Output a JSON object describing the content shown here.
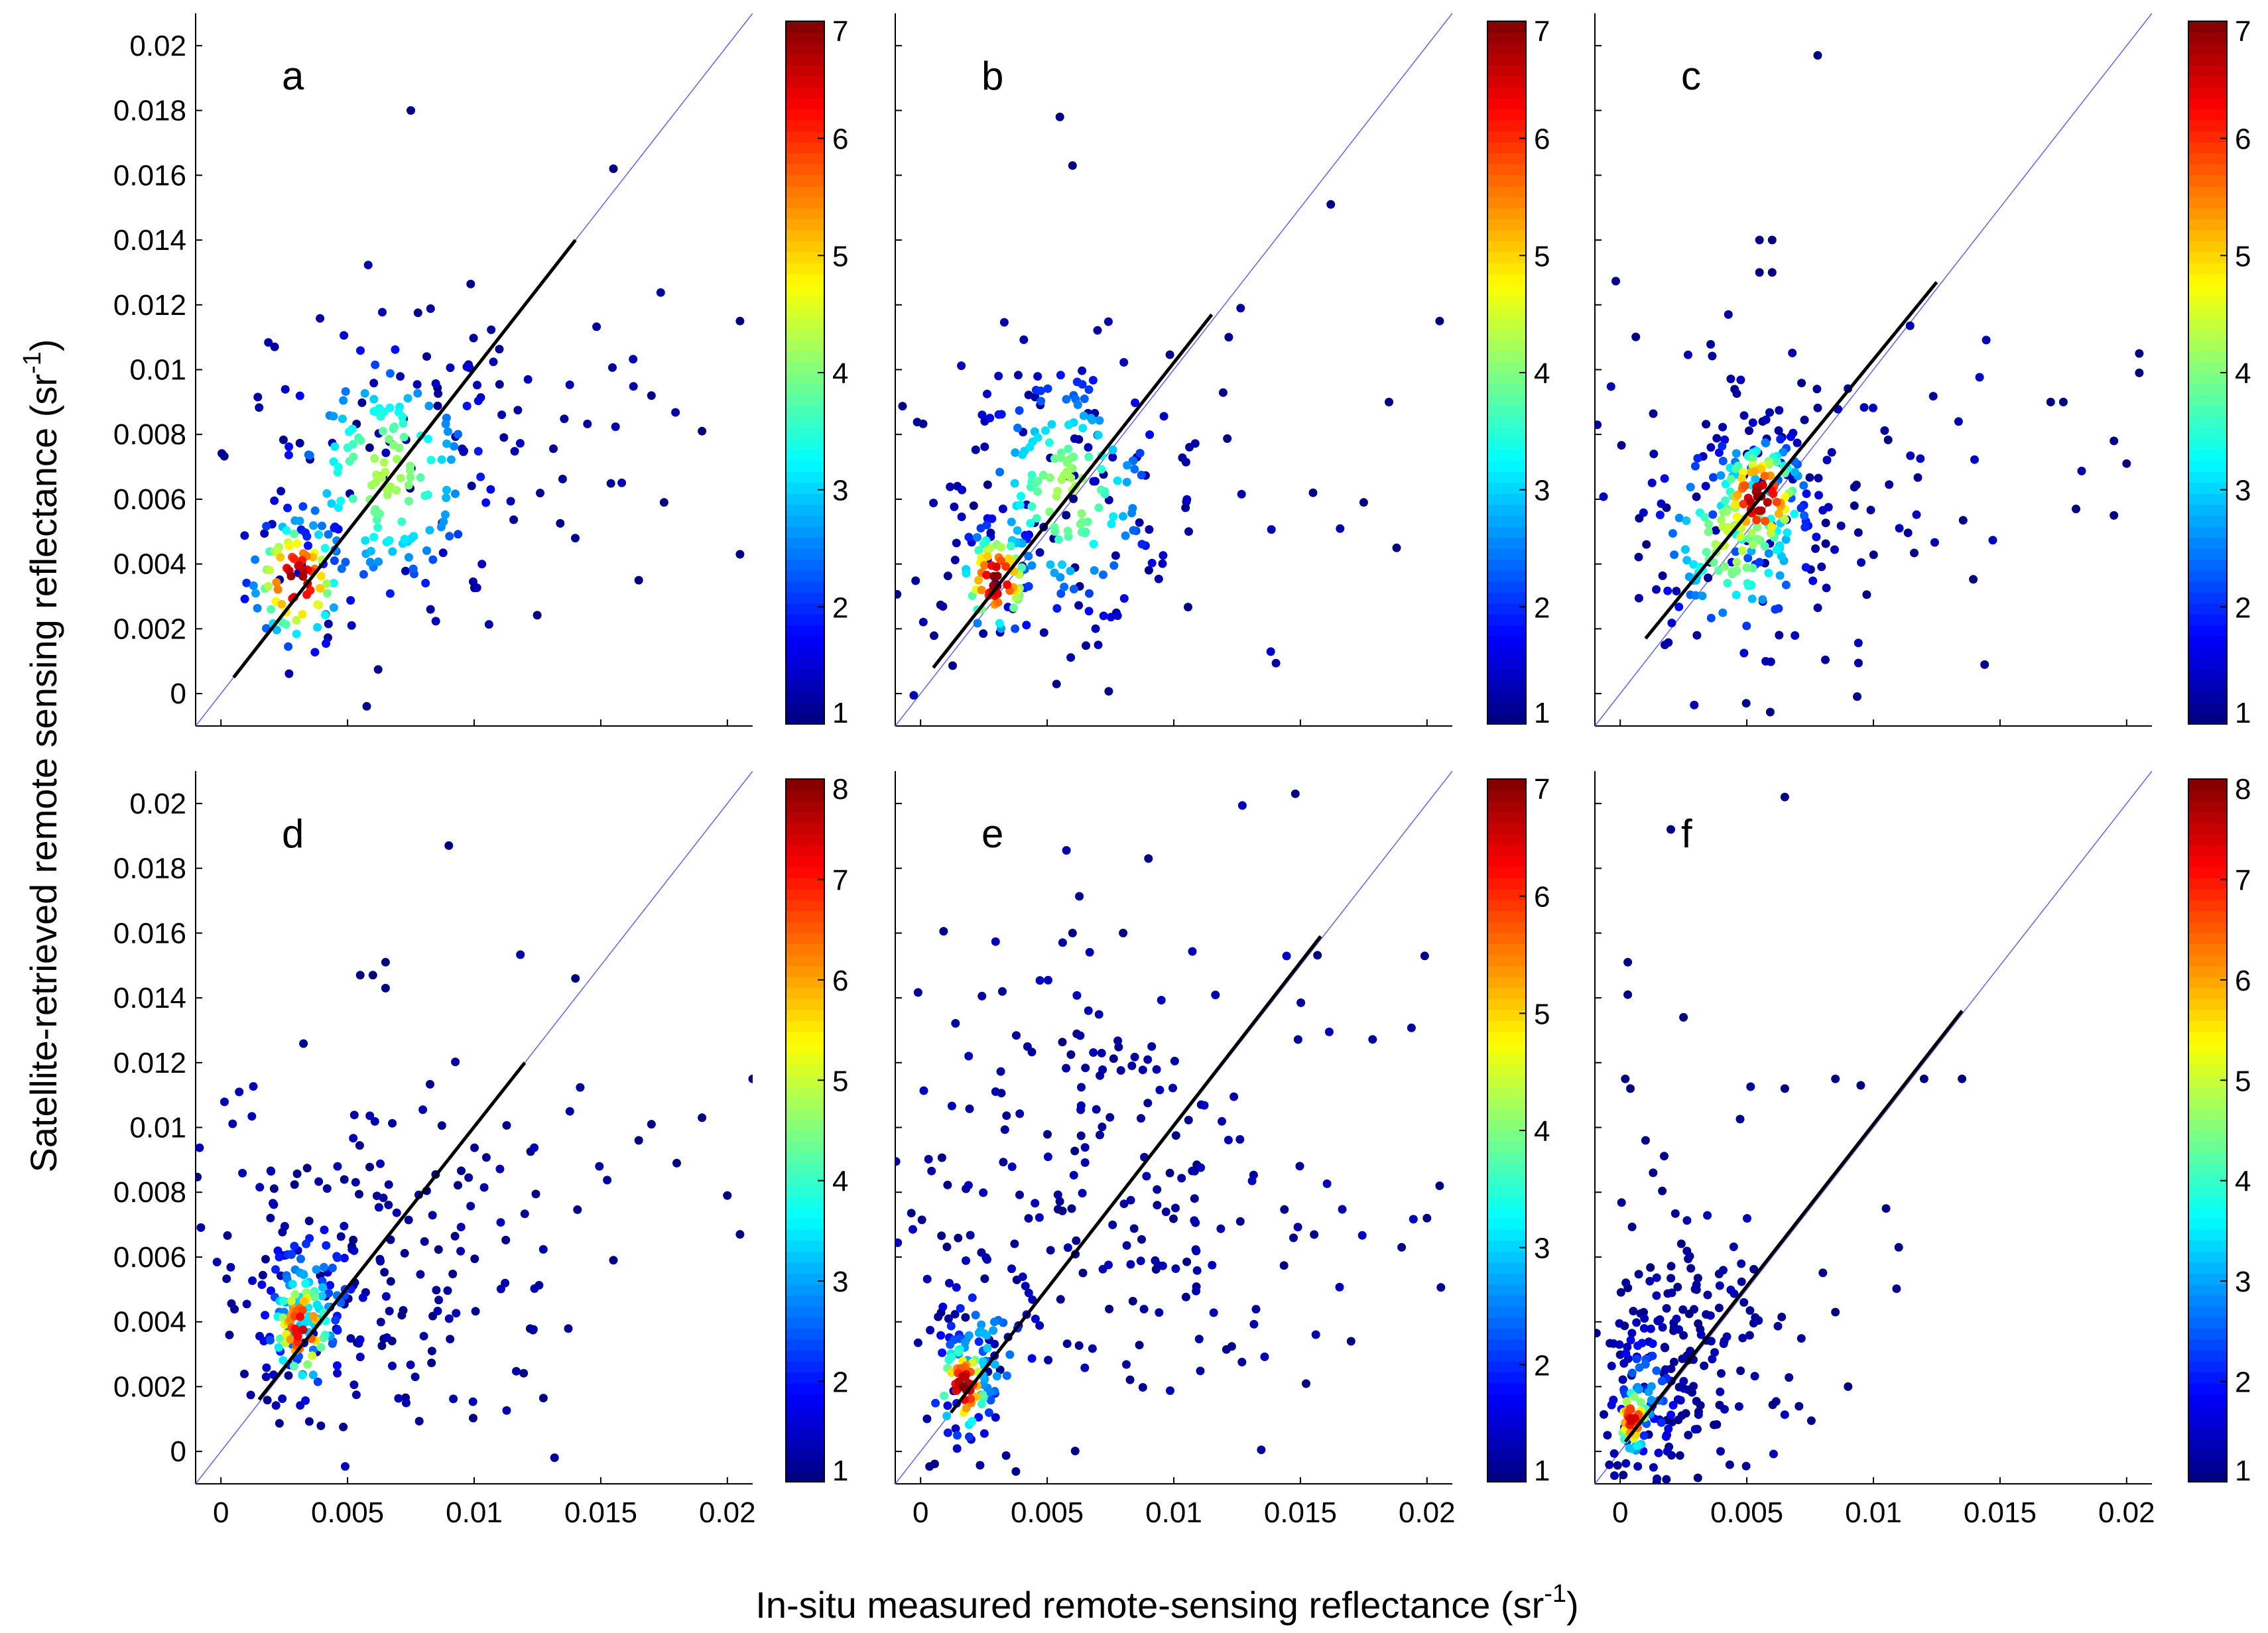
{
  "figure": {
    "xlabel": "In-situ measured remote-sensing reflectance (sr",
    "xlabel_sup": "-1",
    "xlabel_end": ")",
    "ylabel": "Satellite-retrieved remote sensing reflectance (sr",
    "ylabel_sup": "-1",
    "ylabel_end": ")"
  },
  "chart_data": [
    {
      "type": "scatter",
      "label": "a",
      "xlim": [
        -0.001,
        0.021
      ],
      "ylim": [
        -0.001,
        0.021
      ],
      "xticks": [
        0,
        0.005,
        0.01,
        0.015,
        0.02
      ],
      "xticklabels": [
        "0",
        "0.005",
        "0.01",
        "0.015",
        "0.02"
      ],
      "yticks": [
        0,
        0.002,
        0.004,
        0.006,
        0.008,
        0.01,
        0.012,
        0.014,
        0.016,
        0.018,
        0.02
      ],
      "yticklabels": [
        "0",
        "0.002",
        "0.004",
        "0.006",
        "0.008",
        "0.01",
        "0.012",
        "0.014",
        "0.016",
        "0.018",
        "0.02"
      ],
      "show_xticklabels": false,
      "show_yticklabels": true,
      "colorbar": {
        "min": 1,
        "max": 7,
        "ticks": [
          "1",
          "2",
          "3",
          "4",
          "5",
          "6",
          "7"
        ]
      },
      "one_to_one_line": true,
      "fit_line": [
        [
          0.0005,
          0.0005
        ],
        [
          0.014,
          0.014
        ]
      ],
      "clusters": [
        {
          "n": 90,
          "cx": 0.003,
          "cy": 0.0035,
          "sx": 0.001,
          "sy": 0.0011,
          "density": 6.5
        },
        {
          "n": 170,
          "cx": 0.0065,
          "cy": 0.0068,
          "sx": 0.0022,
          "sy": 0.0022,
          "density": 3.8
        },
        {
          "n": 80,
          "cx": 0.0075,
          "cy": 0.0075,
          "sx": 0.0045,
          "sy": 0.003,
          "density": 1
        }
      ],
      "outliers": [
        [
          0.0075,
          0.018
        ],
        [
          0.0155,
          0.0162
        ],
        [
          0.0205,
          0.0115
        ],
        [
          0.0215,
          0.0055
        ],
        [
          0.019,
          0.0081
        ],
        [
          0.0205,
          0.0043
        ],
        [
          0.017,
          0.0092
        ],
        [
          0.0165,
          0.0035
        ],
        [
          0.0175,
          0.0059
        ]
      ]
    },
    {
      "type": "scatter",
      "label": "b",
      "xlim": [
        -0.001,
        0.021
      ],
      "ylim": [
        -0.001,
        0.021
      ],
      "xticks": [
        0,
        0.005,
        0.01,
        0.015,
        0.02
      ],
      "xticklabels": [
        "0",
        "0.005",
        "0.01",
        "0.015",
        "0.02"
      ],
      "yticks": [
        0,
        0.002,
        0.004,
        0.006,
        0.008,
        0.01,
        0.012,
        0.014,
        0.016,
        0.018,
        0.02
      ],
      "yticklabels": [
        "0",
        "0.002",
        "0.004",
        "0.006",
        "0.008",
        "0.01",
        "0.012",
        "0.014",
        "0.016",
        "0.018",
        "0.02"
      ],
      "show_xticklabels": false,
      "show_yticklabels": false,
      "colorbar": {
        "min": 1,
        "max": 7,
        "ticks": [
          "1",
          "2",
          "3",
          "4",
          "5",
          "6",
          "7"
        ]
      },
      "one_to_one_line": true,
      "fit_line": [
        [
          0.0005,
          0.0008
        ],
        [
          0.0115,
          0.0117
        ]
      ],
      "clusters": [
        {
          "n": 80,
          "cx": 0.003,
          "cy": 0.0035,
          "sx": 0.0008,
          "sy": 0.0009,
          "density": 6.5
        },
        {
          "n": 170,
          "cx": 0.0058,
          "cy": 0.0062,
          "sx": 0.002,
          "sy": 0.0021,
          "density": 3.8
        },
        {
          "n": 90,
          "cx": 0.0055,
          "cy": 0.006,
          "sx": 0.004,
          "sy": 0.0032,
          "density": 1
        }
      ],
      "outliers": [
        [
          0.0055,
          0.0178
        ],
        [
          0.006,
          0.0163
        ],
        [
          0.0162,
          0.0151
        ],
        [
          0.0205,
          0.0115
        ],
        [
          0.0185,
          0.009
        ],
        [
          0.0175,
          0.0059
        ],
        [
          0.0188,
          0.0045
        ],
        [
          0.0155,
          0.0062
        ]
      ]
    },
    {
      "type": "scatter",
      "label": "c",
      "xlim": [
        -0.001,
        0.021
      ],
      "ylim": [
        -0.001,
        0.021
      ],
      "xticks": [
        0,
        0.005,
        0.01,
        0.015,
        0.02
      ],
      "xticklabels": [
        "0",
        "0.005",
        "0.01",
        "0.015",
        "0.02"
      ],
      "yticks": [
        0,
        0.002,
        0.004,
        0.006,
        0.008,
        0.01,
        0.012,
        0.014,
        0.016,
        0.018,
        0.02
      ],
      "yticklabels": [
        "0",
        "0.002",
        "0.004",
        "0.006",
        "0.008",
        "0.01",
        "0.012",
        "0.014",
        "0.016",
        "0.018",
        "0.02"
      ],
      "show_xticklabels": false,
      "show_yticklabels": false,
      "colorbar": {
        "min": 1,
        "max": 7,
        "ticks": [
          "1",
          "2",
          "3",
          "4",
          "5",
          "6",
          "7"
        ]
      },
      "one_to_one_line": true,
      "fit_line": [
        [
          0.001,
          0.0017
        ],
        [
          0.0125,
          0.0127
        ]
      ],
      "clusters": [
        {
          "n": 120,
          "cx": 0.0055,
          "cy": 0.006,
          "sx": 0.001,
          "sy": 0.001,
          "density": 6.5
        },
        {
          "n": 140,
          "cx": 0.0045,
          "cy": 0.0048,
          "sx": 0.0017,
          "sy": 0.0017,
          "density": 4
        },
        {
          "n": 110,
          "cx": 0.007,
          "cy": 0.006,
          "sx": 0.0045,
          "sy": 0.003,
          "density": 1
        }
      ],
      "outliers": [
        [
          0.0078,
          0.0197
        ],
        [
          0.0055,
          0.014
        ],
        [
          0.006,
          0.014
        ],
        [
          0.0055,
          0.013
        ],
        [
          0.006,
          0.013
        ],
        [
          0.0205,
          0.0105
        ],
        [
          0.0205,
          0.0099
        ],
        [
          0.0195,
          0.0078
        ],
        [
          0.0212,
          0.0069
        ],
        [
          0.02,
          0.0071
        ],
        [
          0.018,
          0.0057
        ],
        [
          0.0195,
          0.0055
        ],
        [
          0.017,
          0.009
        ],
        [
          0.0175,
          0.009
        ]
      ]
    },
    {
      "type": "scatter",
      "label": "d",
      "xlim": [
        -0.001,
        0.021
      ],
      "ylim": [
        -0.001,
        0.021
      ],
      "xticks": [
        0,
        0.005,
        0.01,
        0.015,
        0.02
      ],
      "xticklabels": [
        "0",
        "0.005",
        "0.01",
        "0.015",
        "0.02"
      ],
      "yticks": [
        0,
        0.002,
        0.004,
        0.006,
        0.008,
        0.01,
        0.012,
        0.014,
        0.016,
        0.018,
        0.02
      ],
      "yticklabels": [
        "0",
        "0.002",
        "0.004",
        "0.006",
        "0.008",
        "0.01",
        "0.012",
        "0.014",
        "0.016",
        "0.018",
        "0.02"
      ],
      "show_xticklabels": true,
      "show_yticklabels": true,
      "colorbar": {
        "min": 1,
        "max": 8,
        "ticks": [
          "1",
          "2",
          "3",
          "4",
          "5",
          "6",
          "7",
          "8"
        ]
      },
      "one_to_one_line": true,
      "fit_line": [
        [
          0.0015,
          0.0016
        ],
        [
          0.012,
          0.012
        ]
      ],
      "clusters": [
        {
          "n": 80,
          "cx": 0.0032,
          "cy": 0.0038,
          "sx": 0.0007,
          "sy": 0.001,
          "density": 7
        },
        {
          "n": 90,
          "cx": 0.0035,
          "cy": 0.0045,
          "sx": 0.0012,
          "sy": 0.0015,
          "density": 3
        },
        {
          "n": 170,
          "cx": 0.0065,
          "cy": 0.0058,
          "sx": 0.004,
          "sy": 0.0028,
          "density": 1
        }
      ],
      "outliers": [
        [
          0.009,
          0.0187
        ],
        [
          0.006,
          0.0147
        ],
        [
          0.0065,
          0.0151
        ],
        [
          0.0065,
          0.0143
        ],
        [
          0.0055,
          0.0147
        ],
        [
          0.014,
          0.0146
        ],
        [
          0.021,
          0.0115
        ],
        [
          0.019,
          0.0103
        ],
        [
          0.018,
          0.0089
        ],
        [
          0.017,
          0.0101
        ],
        [
          0.02,
          0.0079
        ],
        [
          0.0205,
          0.0067
        ],
        [
          0.0165,
          0.0096
        ],
        [
          0.0155,
          0.0059
        ]
      ]
    },
    {
      "type": "scatter",
      "label": "e",
      "xlim": [
        -0.001,
        0.021
      ],
      "ylim": [
        -0.001,
        0.021
      ],
      "xticks": [
        0,
        0.005,
        0.01,
        0.015,
        0.02
      ],
      "xticklabels": [
        "0",
        "0.005",
        "0.01",
        "0.015",
        "0.02"
      ],
      "yticks": [
        0,
        0.002,
        0.004,
        0.006,
        0.008,
        0.01,
        0.012,
        0.014,
        0.016,
        0.018,
        0.02
      ],
      "yticklabels": [
        "0",
        "0.002",
        "0.004",
        "0.006",
        "0.008",
        "0.01",
        "0.012",
        "0.014",
        "0.016",
        "0.018",
        "0.02"
      ],
      "show_xticklabels": true,
      "show_yticklabels": false,
      "colorbar": {
        "min": 1,
        "max": 7,
        "ticks": [
          "1",
          "2",
          "3",
          "4",
          "5",
          "6",
          "7"
        ]
      },
      "one_to_one_line": true,
      "fit_line": [
        [
          0.0012,
          0.0012
        ],
        [
          0.0158,
          0.0159
        ]
      ],
      "clusters": [
        {
          "n": 70,
          "cx": 0.0017,
          "cy": 0.002,
          "sx": 0.0006,
          "sy": 0.0008,
          "density": 6.5
        },
        {
          "n": 60,
          "cx": 0.0025,
          "cy": 0.003,
          "sx": 0.0012,
          "sy": 0.0014,
          "density": 2.5
        },
        {
          "n": 230,
          "cx": 0.008,
          "cy": 0.008,
          "sx": 0.0048,
          "sy": 0.0042,
          "density": 1
        }
      ],
      "outliers": [
        [
          0.0148,
          0.0203
        ],
        [
          0.009,
          0.0183
        ],
        [
          0.006,
          0.016
        ],
        [
          0.008,
          0.016
        ],
        [
          0.0205,
          0.0082
        ],
        [
          0.02,
          0.0072
        ],
        [
          0.019,
          0.0063
        ],
        [
          0.017,
          0.0034
        ]
      ]
    },
    {
      "type": "scatter",
      "label": "f",
      "xlim": [
        -0.001,
        0.021
      ],
      "ylim": [
        -0.001,
        0.021
      ],
      "xticks": [
        0,
        0.005,
        0.01,
        0.015,
        0.02
      ],
      "xticklabels": [
        "0",
        "0.005",
        "0.01",
        "0.015",
        "0.02"
      ],
      "yticks": [
        0,
        0.002,
        0.004,
        0.006,
        0.008,
        0.01,
        0.012,
        0.014,
        0.016,
        0.018,
        0.02
      ],
      "yticklabels": [
        "0",
        "0.002",
        "0.004",
        "0.006",
        "0.008",
        "0.01",
        "0.012",
        "0.014",
        "0.016",
        "0.018",
        "0.02"
      ],
      "show_xticklabels": true,
      "show_yticklabels": false,
      "colorbar": {
        "min": 1,
        "max": 8,
        "ticks": [
          "1",
          "2",
          "3",
          "4",
          "5",
          "6",
          "7",
          "8"
        ]
      },
      "one_to_one_line": true,
      "fit_line": [
        [
          0.0002,
          0.0003
        ],
        [
          0.0135,
          0.0136
        ]
      ],
      "clusters": [
        {
          "n": 50,
          "cx": 0.0005,
          "cy": 0.001,
          "sx": 0.0004,
          "sy": 0.0006,
          "density": 7
        },
        {
          "n": 60,
          "cx": 0.001,
          "cy": 0.0018,
          "sx": 0.0008,
          "sy": 0.0012,
          "density": 2.5
        },
        {
          "n": 190,
          "cx": 0.0025,
          "cy": 0.003,
          "sx": 0.0022,
          "sy": 0.0025,
          "density": 1
        }
      ],
      "outliers": [
        [
          0.0065,
          0.0202
        ],
        [
          0.002,
          0.0192
        ],
        [
          0.0003,
          0.0151
        ],
        [
          0.0003,
          0.0141
        ],
        [
          0.0025,
          0.0134
        ],
        [
          0.012,
          0.0115
        ],
        [
          0.0135,
          0.0115
        ],
        [
          0.0095,
          0.0113
        ],
        [
          0.0085,
          0.0115
        ],
        [
          0.0105,
          0.0075
        ],
        [
          0.011,
          0.0063
        ],
        [
          0.0085,
          0.0043
        ],
        [
          0.009,
          0.002
        ],
        [
          0.0065,
          0.0112
        ],
        [
          0.0013,
          0.0086
        ],
        [
          0.001,
          0.0096
        ],
        [
          0.0004,
          0.0112
        ],
        [
          0.0002,
          0.0115
        ]
      ]
    }
  ]
}
